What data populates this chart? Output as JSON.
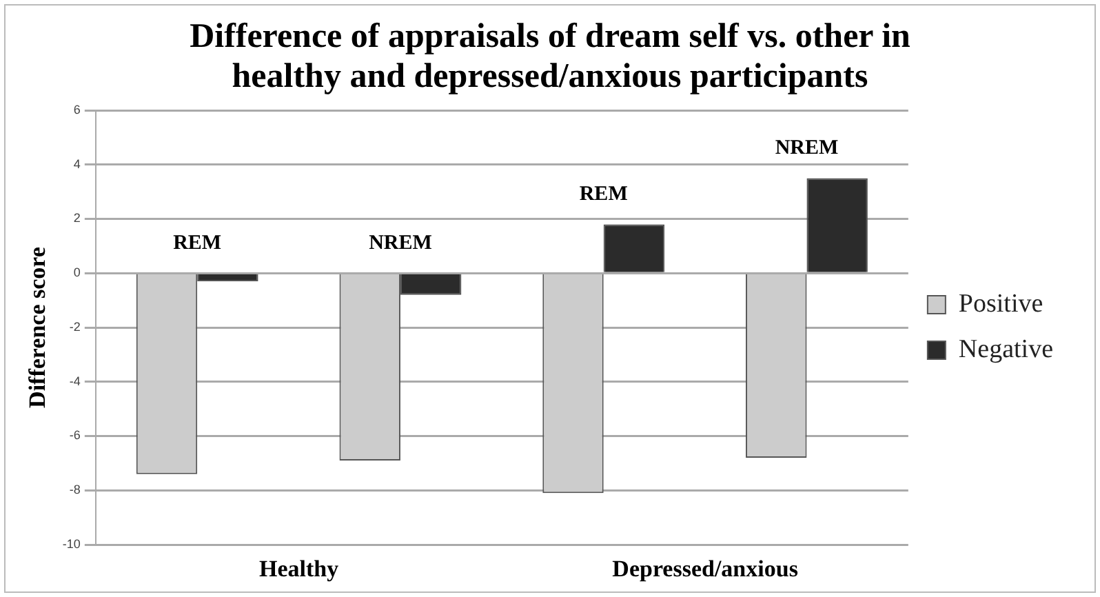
{
  "chart_data": {
    "type": "bar",
    "title": "Difference of appraisals of dream self vs. other in healthy and depressed/anxious participants",
    "ylabel": "Difference score",
    "categories": [
      "REM",
      "NREM",
      "REM",
      "NREM"
    ],
    "series": [
      {
        "name": "Positive",
        "color": "#cccccc",
        "values": [
          -7.4,
          -6.9,
          -8.1,
          -6.8
        ]
      },
      {
        "name": "Negative",
        "color": "#2b2b2b",
        "values": [
          -0.3,
          -0.8,
          1.8,
          3.5
        ]
      }
    ],
    "annotations": [
      "Healthy",
      "Depressed/anxious"
    ],
    "ylim": [
      -10,
      6
    ],
    "yticks": [
      -10,
      -8,
      -6,
      -4,
      -2,
      0,
      2,
      4,
      6
    ],
    "grid": "y",
    "legend": "right"
  }
}
